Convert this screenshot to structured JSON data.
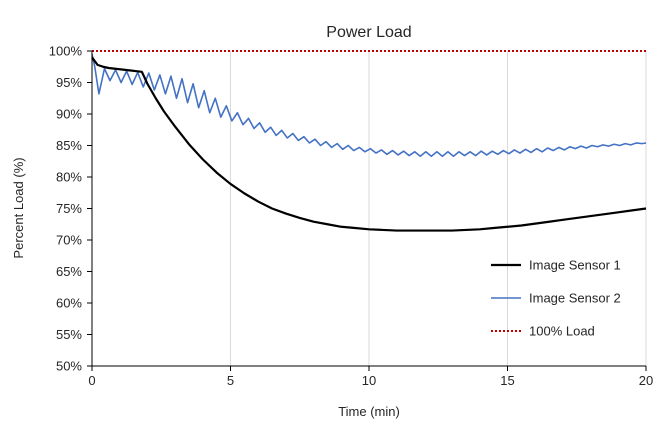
{
  "chart_data": {
    "type": "line",
    "title": "Power Load",
    "xlabel": "Time (min)",
    "ylabel": "Percent Load (%)",
    "xlim": [
      0,
      20
    ],
    "ylim": [
      50,
      100
    ],
    "x_ticks": [
      0,
      5,
      10,
      15,
      20
    ],
    "y_ticks": [
      50,
      55,
      60,
      65,
      70,
      75,
      80,
      85,
      90,
      95,
      100
    ],
    "x_tick_labels": [
      "0",
      "5",
      "10",
      "15",
      "20"
    ],
    "y_tick_labels": [
      "50%",
      "55%",
      "60%",
      "65%",
      "70%",
      "75%",
      "80%",
      "85%",
      "90%",
      "95%",
      "100%"
    ],
    "grid": "vertical",
    "legend": "bottom-right",
    "series": [
      {
        "name": "Image Sensor 1",
        "color": "#000000",
        "style": "solid",
        "x": [
          0,
          0.2,
          0.4,
          0.6,
          0.8,
          1.0,
          1.2,
          1.4,
          1.6,
          1.8,
          2.0,
          2.3,
          2.6,
          3.0,
          3.5,
          4.0,
          4.5,
          5.0,
          5.5,
          6.0,
          6.5,
          7.0,
          7.5,
          8.0,
          8.5,
          9.0,
          9.5,
          10.0,
          10.5,
          11.0,
          11.5,
          12.0,
          12.5,
          13.0,
          13.5,
          14.0,
          14.5,
          15.0,
          15.5,
          16.0,
          16.5,
          17.0,
          17.5,
          18.0,
          18.5,
          19.0,
          19.5,
          20.0
        ],
        "y": [
          99.0,
          97.8,
          97.5,
          97.3,
          97.2,
          97.1,
          97.0,
          96.9,
          96.8,
          96.7,
          94.8,
          92.5,
          90.4,
          88.0,
          85.2,
          82.8,
          80.7,
          78.9,
          77.4,
          76.1,
          75.0,
          74.2,
          73.5,
          72.9,
          72.5,
          72.1,
          71.9,
          71.7,
          71.6,
          71.5,
          71.5,
          71.5,
          71.5,
          71.5,
          71.6,
          71.7,
          71.9,
          72.1,
          72.3,
          72.6,
          72.9,
          73.2,
          73.5,
          73.8,
          74.1,
          74.4,
          74.7,
          75.0
        ]
      },
      {
        "name": "Image Sensor 2",
        "color": "#4472C4",
        "style": "solid",
        "x": [
          0,
          0.1,
          0.25,
          0.45,
          0.65,
          0.85,
          1.05,
          1.25,
          1.45,
          1.65,
          1.85,
          2.05,
          2.25,
          2.45,
          2.65,
          2.85,
          3.05,
          3.25,
          3.45,
          3.65,
          3.85,
          4.05,
          4.25,
          4.45,
          4.65,
          4.85,
          5.05,
          5.25,
          5.45,
          5.65,
          5.85,
          6.05,
          6.25,
          6.45,
          6.65,
          6.85,
          7.05,
          7.25,
          7.45,
          7.65,
          7.85,
          8.05,
          8.25,
          8.45,
          8.65,
          8.85,
          9.05,
          9.25,
          9.45,
          9.65,
          9.85,
          10.05,
          10.25,
          10.45,
          10.65,
          10.85,
          11.05,
          11.25,
          11.45,
          11.65,
          11.85,
          12.05,
          12.25,
          12.45,
          12.65,
          12.85,
          13.05,
          13.25,
          13.45,
          13.65,
          13.85,
          14.05,
          14.25,
          14.45,
          14.65,
          14.85,
          15.05,
          15.25,
          15.45,
          15.65,
          15.85,
          16.05,
          16.25,
          16.45,
          16.65,
          16.85,
          17.05,
          17.25,
          17.45,
          17.65,
          17.85,
          18.05,
          18.25,
          18.45,
          18.65,
          18.85,
          19.05,
          19.25,
          19.45,
          19.65,
          19.85,
          20.0
        ],
        "y": [
          99.5,
          97.5,
          93.2,
          97.2,
          95.3,
          97.0,
          95.0,
          96.8,
          94.7,
          96.6,
          94.3,
          96.5,
          93.8,
          96.2,
          93.2,
          96.0,
          92.5,
          95.6,
          91.8,
          94.8,
          91.0,
          93.7,
          90.2,
          92.5,
          89.5,
          91.3,
          88.9,
          90.2,
          88.3,
          89.3,
          87.7,
          88.6,
          87.1,
          87.9,
          86.6,
          87.4,
          86.2,
          86.9,
          85.8,
          86.4,
          85.4,
          86.0,
          85.0,
          85.6,
          84.7,
          85.3,
          84.4,
          85.0,
          84.2,
          84.7,
          84.0,
          84.5,
          83.8,
          84.3,
          83.6,
          84.2,
          83.5,
          84.1,
          83.4,
          84.0,
          83.3,
          84.0,
          83.3,
          84.0,
          83.3,
          84.0,
          83.3,
          84.0,
          83.4,
          84.0,
          83.4,
          84.1,
          83.5,
          84.1,
          83.6,
          84.2,
          83.7,
          84.3,
          83.8,
          84.4,
          83.9,
          84.5,
          84.0,
          84.6,
          84.2,
          84.7,
          84.3,
          84.8,
          84.5,
          84.9,
          84.6,
          85.0,
          84.8,
          85.1,
          84.9,
          85.2,
          85.0,
          85.3,
          85.1,
          85.4,
          85.3,
          85.4
        ]
      },
      {
        "name": "100% Load",
        "color": "#C00000",
        "style": "dotted",
        "x": [
          0,
          20
        ],
        "y": [
          100,
          100
        ]
      }
    ]
  }
}
